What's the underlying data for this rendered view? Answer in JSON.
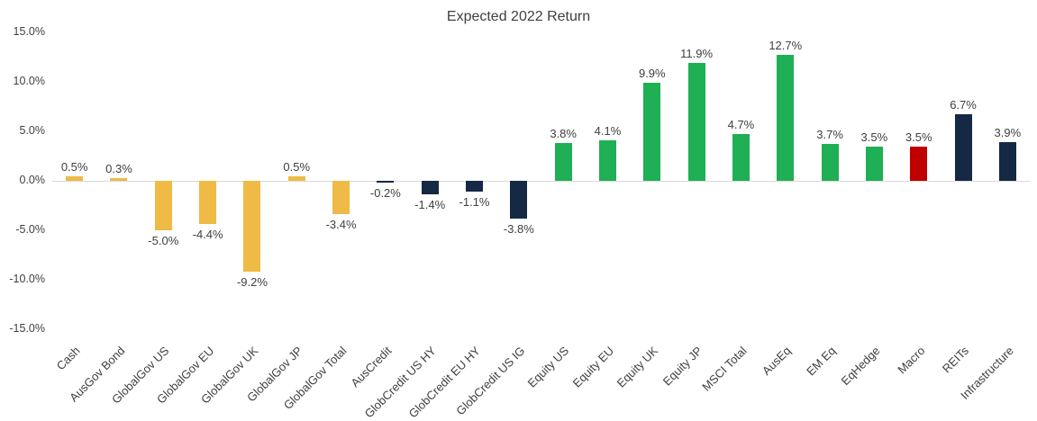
{
  "palette": {
    "gold": "#EFBA45",
    "navy": "#152844",
    "green": "#1FAF54",
    "red": "#C00000",
    "axis_line": "#D9D9D9",
    "text": "#404040"
  },
  "chart_data": {
    "type": "bar",
    "title": "Expected 2022 Return",
    "categories": [
      "Cash",
      "AusGov Bond",
      "GlobalGov US",
      "GlobalGov EU",
      "GlobalGov UK",
      "GlobalGov JP",
      "GlobalGov Total",
      "AusCredit",
      "GlobCredit US HY",
      "GlobCredit EU HY",
      "GlobCredit US IG",
      "Equity US",
      "Equity EU",
      "Equity UK",
      "Equity JP",
      "MSCI Total",
      "AusEq",
      "EM Eq",
      "EqHedge",
      "Macro",
      "REITs",
      "Infrastructure"
    ],
    "values": [
      0.5,
      0.3,
      -5.0,
      -4.4,
      -9.2,
      0.5,
      -3.4,
      -0.2,
      -1.4,
      -1.1,
      -3.8,
      3.8,
      4.1,
      9.9,
      11.9,
      4.7,
      12.7,
      3.7,
      3.5,
      3.5,
      6.7,
      3.9
    ],
    "labels": [
      "0.5%",
      "0.3%",
      "-5.0%",
      "-4.4%",
      "-9.2%",
      "0.5%",
      "-3.4%",
      "-0.2%",
      "-1.4%",
      "-1.1%",
      "-3.8%",
      "3.8%",
      "4.1%",
      "9.9%",
      "11.9%",
      "4.7%",
      "12.7%",
      "3.7%",
      "3.5%",
      "3.5%",
      "6.7%",
      "3.9%"
    ],
    "colors": [
      "gold",
      "gold",
      "gold",
      "gold",
      "gold",
      "gold",
      "gold",
      "navy",
      "navy",
      "navy",
      "navy",
      "green",
      "green",
      "green",
      "green",
      "green",
      "green",
      "green",
      "green",
      "red",
      "navy",
      "navy"
    ],
    "ylim": [
      -15,
      15
    ],
    "yticks": [
      15,
      10,
      5,
      0,
      -5,
      -10,
      -15
    ],
    "ytick_labels": [
      "15.0%",
      "10.0%",
      "5.0%",
      "0.0%",
      "-5.0%",
      "-10.0%",
      "-15.0%"
    ],
    "xlabel": "",
    "ylabel": "",
    "grid": false,
    "legend": "none"
  }
}
